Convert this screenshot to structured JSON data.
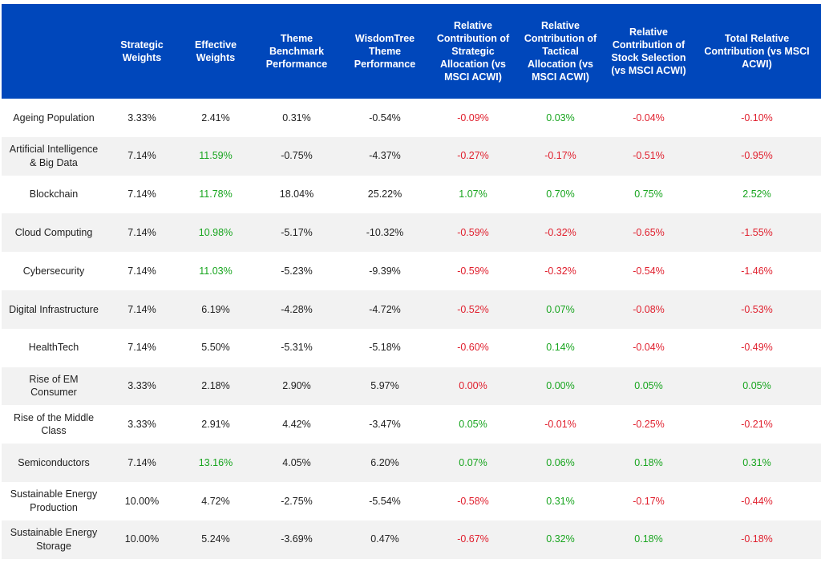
{
  "colors": {
    "header_bg": "#0047bb",
    "header_text": "#ffffff",
    "positive": "#18a51f",
    "negative": "#e0202e",
    "row_alt": "#f2f2f2"
  },
  "headers": [
    "",
    "Strategic Weights",
    "Effective Weights",
    "Theme Benchmark Performance",
    "WisdomTree Theme Performance",
    "Relative Contribution of Strategic Allocation (vs MSCI ACWI)",
    "Relative Contribution of Tactical Allocation (vs MSCI ACWI)",
    "Relative Contribution of Stock Selection (vs MSCI ACWI)",
    "Total Relative Contribution (vs MSCI ACWI)"
  ],
  "rows": [
    {
      "cells": [
        "Ageing Population",
        "3.33%",
        "2.41%",
        "0.31%",
        "-0.54%",
        "-0.09%",
        "0.03%",
        "-0.04%",
        "-0.10%"
      ],
      "colors": [
        "",
        "",
        "",
        "",
        "",
        "neg",
        "pos",
        "neg",
        "neg"
      ]
    },
    {
      "cells": [
        "Artificial Intelligence & Big Data",
        "7.14%",
        "11.59%",
        "-0.75%",
        "-4.37%",
        "-0.27%",
        "-0.17%",
        "-0.51%",
        "-0.95%"
      ],
      "colors": [
        "",
        "",
        "pos",
        "",
        "",
        "neg",
        "neg",
        "neg",
        "neg"
      ]
    },
    {
      "cells": [
        "Blockchain",
        "7.14%",
        "11.78%",
        "18.04%",
        "25.22%",
        "1.07%",
        "0.70%",
        "0.75%",
        "2.52%"
      ],
      "colors": [
        "",
        "",
        "pos",
        "",
        "",
        "pos",
        "pos",
        "pos",
        "pos"
      ]
    },
    {
      "cells": [
        "Cloud Computing",
        "7.14%",
        "10.98%",
        "-5.17%",
        "-10.32%",
        "-0.59%",
        "-0.32%",
        "-0.65%",
        "-1.55%"
      ],
      "colors": [
        "",
        "",
        "pos",
        "",
        "",
        "neg",
        "neg",
        "neg",
        "neg"
      ]
    },
    {
      "cells": [
        "Cybersecurity",
        "7.14%",
        "11.03%",
        "-5.23%",
        "-9.39%",
        "-0.59%",
        "-0.32%",
        "-0.54%",
        "-1.46%"
      ],
      "colors": [
        "",
        "",
        "pos",
        "",
        "",
        "neg",
        "neg",
        "neg",
        "neg"
      ]
    },
    {
      "cells": [
        "Digital Infrastructure",
        "7.14%",
        "6.19%",
        "-4.28%",
        "-4.72%",
        "-0.52%",
        "0.07%",
        "-0.08%",
        "-0.53%"
      ],
      "colors": [
        "",
        "",
        "",
        "",
        "",
        "neg",
        "pos",
        "neg",
        "neg"
      ]
    },
    {
      "cells": [
        "HealthTech",
        "7.14%",
        "5.50%",
        "-5.31%",
        "-5.18%",
        "-0.60%",
        "0.14%",
        "-0.04%",
        "-0.49%"
      ],
      "colors": [
        "",
        "",
        "",
        "",
        "",
        "neg",
        "pos",
        "neg",
        "neg"
      ]
    },
    {
      "cells": [
        "Rise of EM Consumer",
        "3.33%",
        "2.18%",
        "2.90%",
        "5.97%",
        "0.00%",
        "0.00%",
        "0.05%",
        "0.05%"
      ],
      "colors": [
        "",
        "",
        "",
        "",
        "",
        "neg",
        "pos",
        "pos",
        "pos"
      ]
    },
    {
      "cells": [
        "Rise of the Middle Class",
        "3.33%",
        "2.91%",
        "4.42%",
        "-3.47%",
        "0.05%",
        "-0.01%",
        "-0.25%",
        "-0.21%"
      ],
      "colors": [
        "",
        "",
        "",
        "",
        "",
        "pos",
        "neg",
        "neg",
        "neg"
      ]
    },
    {
      "cells": [
        "Semiconductors",
        "7.14%",
        "13.16%",
        "4.05%",
        "6.20%",
        "0.07%",
        "0.06%",
        "0.18%",
        "0.31%"
      ],
      "colors": [
        "",
        "",
        "pos",
        "",
        "",
        "pos",
        "pos",
        "pos",
        "pos"
      ]
    },
    {
      "cells": [
        "Sustainable Energy Production",
        "10.00%",
        "4.72%",
        "-2.75%",
        "-5.54%",
        "-0.58%",
        "0.31%",
        "-0.17%",
        "-0.44%"
      ],
      "colors": [
        "",
        "",
        "",
        "",
        "",
        "neg",
        "pos",
        "neg",
        "neg"
      ]
    },
    {
      "cells": [
        "Sustainable Energy Storage",
        "10.00%",
        "5.24%",
        "-3.69%",
        "0.47%",
        "-0.67%",
        "0.32%",
        "0.18%",
        "-0.18%"
      ],
      "colors": [
        "",
        "",
        "",
        "",
        "",
        "neg",
        "pos",
        "pos",
        "neg"
      ]
    }
  ]
}
